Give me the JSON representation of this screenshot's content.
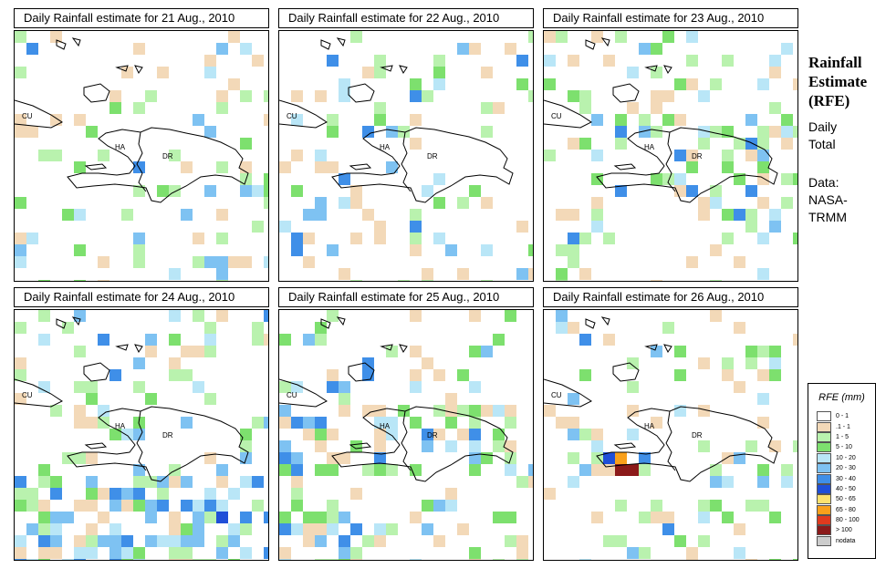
{
  "panels": [
    {
      "title": "Daily Rainfall estimate for  21 Aug., 2010",
      "seed": 21
    },
    {
      "title": "Daily Rainfall estimate for  22 Aug., 2010",
      "seed": 22
    },
    {
      "title": "Daily Rainfall estimate for  23 Aug., 2010",
      "seed": 23
    },
    {
      "title": "Daily Rainfall estimate for  24 Aug., 2010",
      "seed": 24
    },
    {
      "title": "Daily Rainfall estimate for  25 Aug., 2010",
      "seed": 25
    },
    {
      "title": "Daily Rainfall estimate for  26 Aug., 2010",
      "seed": 26
    }
  ],
  "map_labels": {
    "cuba": "CU",
    "haiti": "HA",
    "dominican_republic": "DR"
  },
  "side": {
    "title": [
      "Rainfall",
      "Estimate",
      "(RFE)"
    ],
    "daily_total": [
      "Daily",
      "Total"
    ],
    "data_source": [
      "Data:",
      "NASA-",
      "TRMM"
    ]
  },
  "legend": {
    "title": "RFE (mm)",
    "items": [
      {
        "label": "0 - 1",
        "color": "#ffffff"
      },
      {
        "label": ".1 - 1",
        "color": "#f3d9b8"
      },
      {
        "label": "1 - 5",
        "color": "#b9f2ae"
      },
      {
        "label": "5 - 10",
        "color": "#7de06e"
      },
      {
        "label": "10 - 20",
        "color": "#b9e6f7"
      },
      {
        "label": "20 - 30",
        "color": "#7ec2f2"
      },
      {
        "label": "30 - 40",
        "color": "#3f8fe8"
      },
      {
        "label": "40 - 50",
        "color": "#1f4fd8"
      },
      {
        "label": "50 - 65",
        "color": "#fde26e"
      },
      {
        "label": "65 - 80",
        "color": "#f9a01b"
      },
      {
        "label": "80 - 100",
        "color": "#e03a1e"
      },
      {
        "label": "> 100",
        "color": "#8b1a1a"
      },
      {
        "label": "nodata",
        "color": "#cccccc"
      }
    ]
  }
}
